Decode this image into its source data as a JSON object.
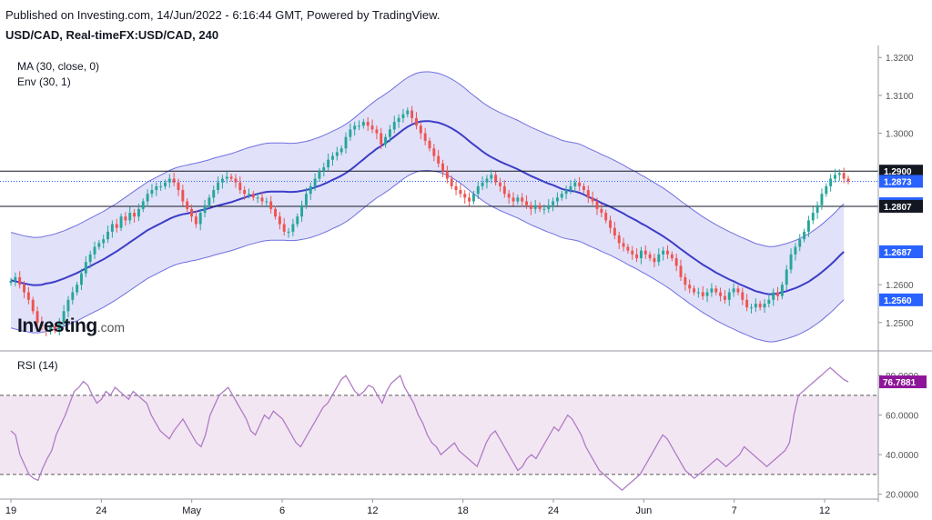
{
  "header": {
    "published": "Published on Investing.com, 14/Jun/2022 - 6:16:44 GMT, Powered by TradingView.",
    "symbol": "USD/CAD, Real-timeFX:USD/CAD, 240"
  },
  "indicators": {
    "ma": "MA (30, close, 0)",
    "env": "Env (30, 1)",
    "rsi": "RSI (14)"
  },
  "logo": {
    "main": "Investing",
    "suffix": ".com"
  },
  "colors": {
    "up": "#26a69a",
    "down": "#ef5350",
    "ma": "#3d3dc8",
    "env_line": "#7070e0",
    "env_fill": "#dcdcf8",
    "rsi": "#b07cc6",
    "rsi_band": "#f3e6f3",
    "label_blue": "#2962ff",
    "label_black": "#131722",
    "label_orange": "#f57c00",
    "label_purple": "#8e1599"
  },
  "chart_data": {
    "type": "candlestick",
    "price_axis": {
      "ticks": [
        "1.3200",
        "1.3100",
        "1.3000",
        "1.2600",
        "1.2500"
      ],
      "range": [
        1.243,
        1.3215
      ]
    },
    "price_labels": [
      {
        "text": "1.2900",
        "value": 1.29,
        "style": "black",
        "line": true
      },
      {
        "text": "1.2873",
        "value": 1.2873,
        "style": "blue",
        "line": false
      },
      {
        "text": "1.2814",
        "value": 1.2814,
        "style": "blue",
        "line": false
      },
      {
        "text": "1.2807",
        "value": 1.2807,
        "style": "black",
        "line": true
      },
      {
        "text": "1.2687",
        "value": 1.2687,
        "style": "orange",
        "line": false
      },
      {
        "text": "1.2687",
        "value": 1.2687,
        "style": "blue",
        "line": false
      },
      {
        "text": "1.2560",
        "value": 1.256,
        "style": "blue",
        "line": false
      }
    ],
    "last_price": 1.2873,
    "time_axis": [
      "19",
      "24",
      "May",
      "6",
      "12",
      "18",
      "24",
      "Jun",
      "7",
      "12"
    ],
    "candle_close": [
      1.261,
      1.262,
      1.26,
      1.258,
      1.256,
      1.253,
      1.25,
      1.249,
      1.248,
      1.249,
      1.248,
      1.25,
      1.253,
      1.256,
      1.258,
      1.26,
      1.263,
      1.266,
      1.268,
      1.27,
      1.271,
      1.272,
      1.274,
      1.276,
      1.275,
      1.278,
      1.277,
      1.279,
      1.278,
      1.28,
      1.282,
      1.284,
      1.285,
      1.286,
      1.286,
      1.287,
      1.288,
      1.287,
      1.285,
      1.282,
      1.28,
      1.278,
      1.276,
      1.279,
      1.281,
      1.283,
      1.285,
      1.287,
      1.288,
      1.2885,
      1.288,
      1.287,
      1.285,
      1.284,
      1.284,
      1.283,
      1.283,
      1.282,
      1.282,
      1.28,
      1.278,
      1.276,
      1.274,
      1.274,
      1.276,
      1.278,
      1.281,
      1.284,
      1.286,
      1.288,
      1.29,
      1.291,
      1.293,
      1.294,
      1.295,
      1.296,
      1.299,
      1.301,
      1.302,
      1.302,
      1.303,
      1.302,
      1.301,
      1.3,
      1.297,
      1.299,
      1.301,
      1.303,
      1.304,
      1.305,
      1.306,
      1.304,
      1.302,
      1.3,
      1.298,
      1.296,
      1.294,
      1.292,
      1.29,
      1.288,
      1.286,
      1.285,
      1.284,
      1.283,
      1.282,
      1.284,
      1.286,
      1.287,
      1.288,
      1.289,
      1.287,
      1.286,
      1.284,
      1.283,
      1.282,
      1.283,
      1.282,
      1.281,
      1.28,
      1.281,
      1.28,
      1.28,
      1.281,
      1.282,
      1.283,
      1.284,
      1.285,
      1.286,
      1.287,
      1.286,
      1.285,
      1.283,
      1.282,
      1.28,
      1.279,
      1.277,
      1.275,
      1.273,
      1.271,
      1.27,
      1.269,
      1.268,
      1.267,
      1.269,
      1.268,
      1.267,
      1.266,
      1.268,
      1.269,
      1.268,
      1.267,
      1.265,
      1.262,
      1.26,
      1.259,
      1.258,
      1.258,
      1.257,
      1.258,
      1.259,
      1.258,
      1.257,
      1.256,
      1.258,
      1.259,
      1.258,
      1.256,
      1.254,
      1.254,
      1.255,
      1.254,
      1.255,
      1.256,
      1.258,
      1.257,
      1.26,
      1.264,
      1.268,
      1.27,
      1.272,
      1.274,
      1.277,
      1.279,
      1.281,
      1.284,
      1.286,
      1.288,
      1.289,
      1.2895,
      1.288,
      1.2873
    ],
    "ma_values": [
      1.2612,
      1.2609,
      1.2606,
      1.2603,
      1.2601,
      1.2599,
      1.2599,
      1.26,
      1.2603,
      1.2605,
      1.2608,
      1.2612,
      1.2616,
      1.2621,
      1.2626,
      1.2631,
      1.2637,
      1.2643,
      1.2649,
      1.2655,
      1.2661,
      1.2667,
      1.2674,
      1.2681,
      1.2688,
      1.2696,
      1.2704,
      1.2712,
      1.272,
      1.2728,
      1.2736,
      1.2744,
      1.275,
      1.2756,
      1.2762,
      1.2768,
      1.2774,
      1.2779,
      1.2783,
      1.2786,
      1.2788,
      1.2791,
      1.2793,
      1.2796,
      1.2799,
      1.2802,
      1.2806,
      1.2809,
      1.2812,
      1.2815,
      1.2818,
      1.2822,
      1.2826,
      1.283,
      1.2834,
      1.2837,
      1.284,
      1.2843,
      1.2845,
      1.2846,
      1.2846,
      1.2846,
      1.2846,
      1.2845,
      1.2845,
      1.2846,
      1.2848,
      1.285,
      1.2853,
      1.2857,
      1.2861,
      1.2866,
      1.2871,
      1.2877,
      1.2882,
      1.2888,
      1.2895,
      1.2903,
      1.2912,
      1.2922,
      1.2931,
      1.2941,
      1.295,
      1.2959,
      1.2966,
      1.2974,
      1.2982,
      1.2991,
      1.3,
      1.3009,
      1.3017,
      1.3023,
      1.3028,
      1.3031,
      1.3032,
      1.3032,
      1.303,
      1.3028,
      1.3024,
      1.3019,
      1.3013,
      1.3006,
      1.2998,
      1.2989,
      1.2979,
      1.297,
      1.2961,
      1.2952,
      1.2944,
      1.2937,
      1.2931,
      1.2925,
      1.292,
      1.2915,
      1.291,
      1.2905,
      1.2899,
      1.2893,
      1.2887,
      1.2882,
      1.2877,
      1.2872,
      1.2867,
      1.2863,
      1.2858,
      1.2853,
      1.285,
      1.2848,
      1.2846,
      1.2843,
      1.2838,
      1.2832,
      1.2827,
      1.2822,
      1.2816,
      1.2811,
      1.2806,
      1.28,
      1.2794,
      1.2788,
      1.2781,
      1.2775,
      1.2769,
      1.2762,
      1.2756,
      1.2749,
      1.2742,
      1.2735,
      1.2728,
      1.272,
      1.2712,
      1.2703,
      1.2694,
      1.2686,
      1.2677,
      1.2669,
      1.2661,
      1.2653,
      1.2646,
      1.2639,
      1.2632,
      1.2626,
      1.262,
      1.2614,
      1.2609,
      1.2603,
      1.2598,
      1.2593,
      1.2588,
      1.2583,
      1.258,
      1.2577,
      1.2575,
      1.2575,
      1.2577,
      1.258,
      1.2583,
      1.2587,
      1.2591,
      1.2596,
      1.2602,
      1.2608,
      1.2616,
      1.2624,
      1.2633,
      1.2643,
      1.2653,
      1.2664,
      1.2676,
      1.2687
    ],
    "envelope_pct": 1,
    "rsi_axis": {
      "ticks": [
        "80.0000",
        "60.0000",
        "40.0000",
        "20.0000"
      ],
      "range": [
        18,
        86
      ],
      "bands": [
        70,
        30
      ]
    },
    "rsi_last_label": "76.7881",
    "rsi_values": [
      52,
      50,
      40,
      35,
      30,
      28,
      27,
      33,
      38,
      42,
      50,
      55,
      60,
      66,
      72,
      74,
      77,
      75,
      70,
      66,
      68,
      72,
      70,
      74,
      72,
      70,
      68,
      72,
      70,
      68,
      66,
      60,
      56,
      52,
      50,
      48,
      52,
      55,
      58,
      54,
      50,
      46,
      44,
      50,
      60,
      65,
      70,
      72,
      74,
      70,
      66,
      62,
      58,
      52,
      50,
      55,
      60,
      58,
      62,
      60,
      58,
      54,
      50,
      46,
      44,
      48,
      52,
      56,
      60,
      64,
      66,
      70,
      74,
      78,
      80,
      76,
      72,
      70,
      72,
      75,
      74,
      70,
      66,
      72,
      76,
      78,
      80,
      74,
      70,
      66,
      60,
      56,
      50,
      46,
      44,
      40,
      42,
      44,
      46,
      42,
      40,
      38,
      36,
      34,
      40,
      46,
      50,
      52,
      48,
      44,
      40,
      36,
      32,
      34,
      38,
      40,
      38,
      42,
      46,
      50,
      54,
      52,
      56,
      60,
      58,
      54,
      50,
      44,
      40,
      36,
      32,
      30,
      28,
      26,
      24,
      22,
      24,
      26,
      28,
      30,
      34,
      38,
      42,
      46,
      50,
      48,
      44,
      40,
      36,
      32,
      30,
      28,
      30,
      32,
      34,
      36,
      38,
      36,
      34,
      36,
      38,
      40,
      44,
      42,
      40,
      38,
      36,
      34,
      36,
      38,
      40,
      42,
      46,
      60,
      70,
      72,
      74,
      76,
      78,
      80,
      82,
      84,
      82,
      80,
      78,
      76.79
    ]
  }
}
